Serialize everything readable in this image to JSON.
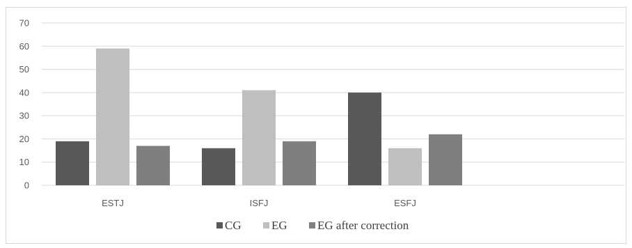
{
  "chart_data": {
    "type": "bar",
    "categories": [
      "ESTJ",
      "ISFJ",
      "ESFJ"
    ],
    "series": [
      {
        "name": "CG",
        "values": [
          19,
          16,
          40
        ],
        "color": "#595959"
      },
      {
        "name": "EG",
        "values": [
          59,
          41,
          16
        ],
        "color": "#bfbfbf"
      },
      {
        "name": "EG after correction",
        "values": [
          17,
          19,
          22
        ],
        "color": "#7f7f7f"
      }
    ],
    "title": "",
    "xlabel": "",
    "ylabel": "",
    "ylim": [
      0,
      70
    ],
    "yticks": [
      0,
      10,
      20,
      30,
      40,
      50,
      60,
      70
    ],
    "grid": true,
    "legend_position": "bottom",
    "gridline_color": "#d9d9d9",
    "axis_line_color": "#d9d9d9"
  }
}
